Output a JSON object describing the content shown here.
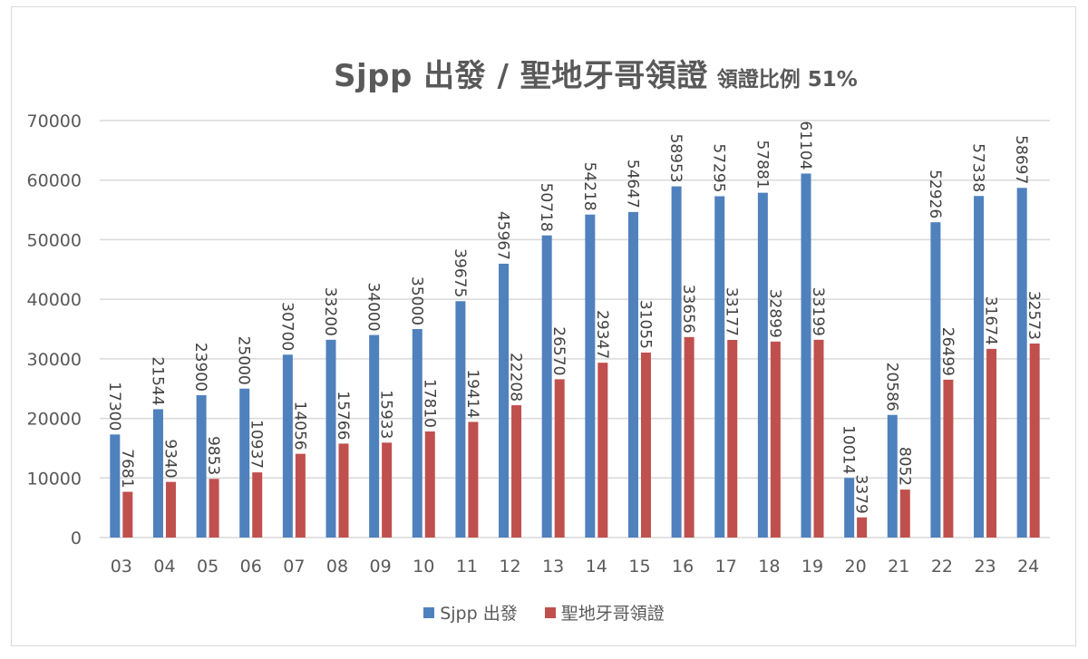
{
  "chart_data": {
    "type": "bar",
    "title": "Sjpp 出發 / 聖地牙哥領證",
    "subtitle": "領證比例 51%",
    "xlabel": "",
    "ylabel": "",
    "ylim": [
      0,
      70000
    ],
    "yticks": [
      "0",
      "10000",
      "20000",
      "30000",
      "40000",
      "50000",
      "60000",
      "70000"
    ],
    "grid": true,
    "legend_position": "bottom",
    "categories": [
      "03",
      "04",
      "05",
      "06",
      "07",
      "08",
      "09",
      "10",
      "11",
      "12",
      "13",
      "14",
      "15",
      "16",
      "17",
      "18",
      "19",
      "20",
      "21",
      "22",
      "23",
      "24"
    ],
    "series": [
      {
        "name": "Sjpp 出發",
        "color": "#4f81bd",
        "values": [
          17300,
          21544,
          23900,
          25000,
          30700,
          33200,
          34000,
          35000,
          39675,
          45967,
          50718,
          54218,
          54647,
          58953,
          57295,
          57881,
          61104,
          10014,
          20586,
          52926,
          57338,
          58697
        ]
      },
      {
        "name": "聖地牙哥領證",
        "color": "#c0504d",
        "values": [
          7681,
          9340,
          9853,
          10937,
          14056,
          15766,
          15933,
          17810,
          19414,
          22208,
          26570,
          29347,
          31055,
          33656,
          33177,
          32899,
          33199,
          3379,
          8052,
          26499,
          31674,
          32573
        ]
      }
    ]
  },
  "colors": {
    "text": "#595959",
    "grid": "#d9d9d9",
    "border": "#d9d9d9"
  }
}
